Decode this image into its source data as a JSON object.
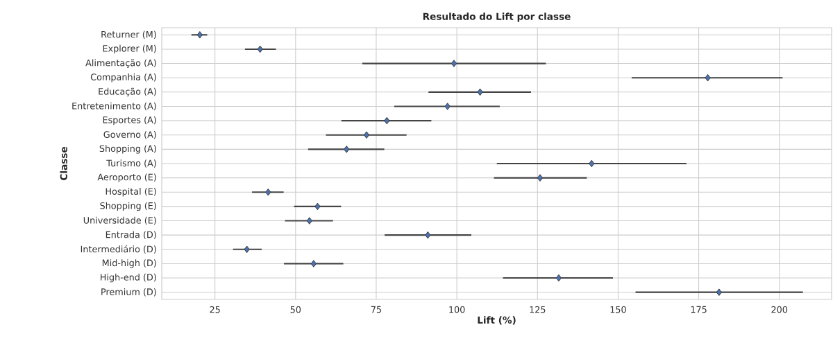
{
  "chart_data": {
    "type": "scatter",
    "orientation": "horizontal",
    "title": "Resultado do Lift por classe",
    "xlabel": "Lift (%)",
    "ylabel": "Classe",
    "categories": [
      "Returner (M)",
      "Explorer (M)",
      "Alimentação (A)",
      "Companhia (A)",
      "Educação (A)",
      "Entretenimento (A)",
      "Esportes (A)",
      "Governo (A)",
      "Shopping (A)",
      "Turismo (A)",
      "Aeroporto (E)",
      "Hospital (E)",
      "Shopping (E)",
      "Universidade (E)",
      "Entrada (D)",
      "Intermediário (D)",
      "Mid-high (D)",
      "High-end (D)",
      "Premium (D)"
    ],
    "values": [
      20.3,
      39.0,
      99.1,
      177.8,
      107.2,
      97.1,
      78.3,
      72.0,
      65.8,
      141.8,
      125.8,
      41.5,
      56.8,
      54.3,
      91.0,
      34.9,
      55.6,
      131.6,
      181.3
    ],
    "errors": [
      [
        17.7,
        22.6
      ],
      [
        34.3,
        43.9
      ],
      [
        70.7,
        127.6
      ],
      [
        154.2,
        201.0
      ],
      [
        91.2,
        123.0
      ],
      [
        80.6,
        113.3
      ],
      [
        64.2,
        92.1
      ],
      [
        59.4,
        84.4
      ],
      [
        53.9,
        77.5
      ],
      [
        112.4,
        171.2
      ],
      [
        111.5,
        140.3
      ],
      [
        36.5,
        46.3
      ],
      [
        49.5,
        64.1
      ],
      [
        46.7,
        61.6
      ],
      [
        77.6,
        104.5
      ],
      [
        30.6,
        39.5
      ],
      [
        46.4,
        64.8
      ],
      [
        114.3,
        148.4
      ],
      [
        155.4,
        207.3
      ]
    ],
    "color": "#4c72b0",
    "marker": "diamond",
    "grid": true,
    "xlim": [
      8.5,
      216.2
    ],
    "xticks": [
      25,
      50,
      75,
      100,
      125,
      150,
      175,
      200
    ]
  }
}
